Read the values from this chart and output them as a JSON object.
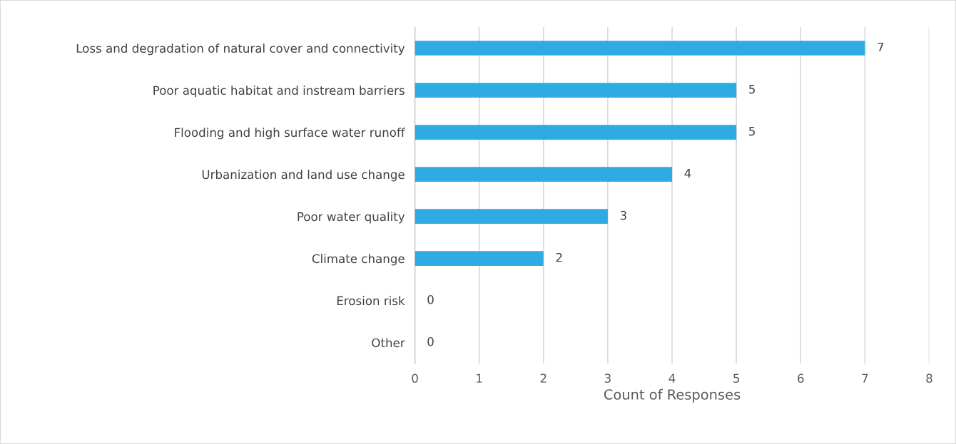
{
  "chart_data": {
    "type": "bar",
    "orientation": "horizontal",
    "xlabel": "Count of Responses",
    "categories": [
      "Loss and degradation of natural cover and connectivity",
      "Poor aquatic habitat and instream barriers",
      "Flooding and high surface water runoff",
      "Urbanization and land use change",
      "Poor water quality",
      "Climate change",
      "Erosion risk",
      "Other"
    ],
    "values": [
      7,
      5,
      5,
      4,
      3,
      2,
      0,
      0
    ],
    "color": "#2eabe2",
    "xlim": [
      0,
      8
    ],
    "xticks": [
      0,
      1,
      2,
      3,
      4,
      5,
      6,
      7,
      8
    ],
    "grid": "x",
    "data_labels": true
  }
}
